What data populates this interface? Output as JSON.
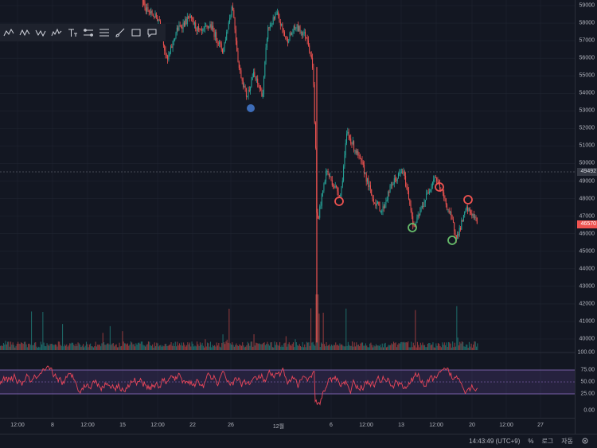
{
  "price_axis": {
    "labels": [
      "59000",
      "58000",
      "57000",
      "56000",
      "55000",
      "54000",
      "53000",
      "52000",
      "51000",
      "50000",
      "49000",
      "48000",
      "47000",
      "46000",
      "45000",
      "44000",
      "43000",
      "42000",
      "41000",
      "40000"
    ],
    "crosshair_price": "49492",
    "last_price": "46570"
  },
  "rsi_axis": {
    "labels": [
      "100.00",
      "75.00",
      "50.00",
      "25.00",
      "0.00"
    ]
  },
  "time_axis": {
    "labels": [
      "12:00",
      "8",
      "12:00",
      "15",
      "12:00",
      "22",
      "26",
      "12월",
      "6",
      "12:00",
      "13",
      "12:00",
      "20",
      "12:00",
      "27"
    ]
  },
  "statusbar": {
    "time": "14:43:49 (UTC+9)",
    "percent": "%",
    "log": "로그",
    "auto": "자동"
  },
  "toolbar": {
    "icons": [
      "abcd-pattern-icon",
      "abcd-pattern-icon-2",
      "xabcd-pattern-icon",
      "elliott-wave-icon",
      "text-tool-icon",
      "horizontal-lines-icon",
      "parallel-lines-icon",
      "brush-icon",
      "rectangle-icon",
      "note-icon"
    ]
  },
  "colors": {
    "up": "#26a69a",
    "down": "#ef5350",
    "background": "#131722",
    "rsi_band": "#7e57c2",
    "rsi_line": "#e8465a",
    "marker_blue": "#2962ff",
    "marker_red": "#ef5350",
    "marker_green": "#26a69a"
  }
}
